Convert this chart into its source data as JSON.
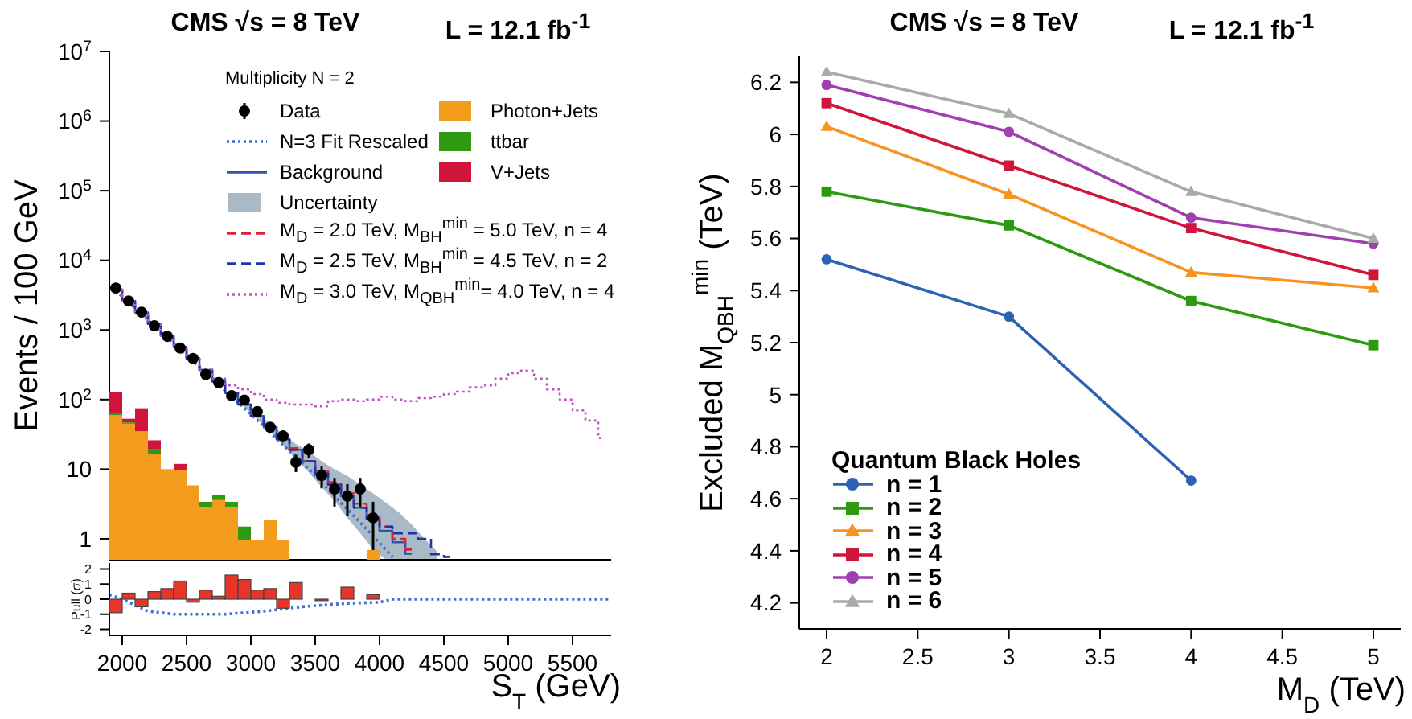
{
  "chart_data": [
    {
      "type": "bar",
      "title": "CMS √s = 8 TeV",
      "subtitle": "L = 12.1 fb$^{-1}$",
      "ylabel": "Events / 100 GeV",
      "legend_title": "Multiplicity N = 2",
      "legend": "top right",
      "log": "y",
      "stacked": true,
      "tick_labels": "y",
      "x": [
        1950,
        2050,
        2150,
        2250,
        2350,
        2450,
        2550,
        2650,
        2750,
        2850,
        2950,
        3050,
        3150,
        3250,
        3350,
        3450,
        3550,
        3650,
        3750,
        3850,
        3950
      ],
      "xlim": [
        1900,
        5800
      ],
      "xticks": [
        2000,
        2500,
        3000,
        3500,
        4000,
        4500,
        5000,
        5500
      ],
      "ylim": [
        0.5,
        10000000
      ],
      "yticks": [
        1,
        10,
        {
          "value": 100,
          "label": "10$^{2}$"
        },
        {
          "value": 1000,
          "label": "10$^{3}$"
        },
        {
          "value": 10000,
          "label": "10$^{4}$"
        },
        {
          "value": 100000,
          "label": "10$^{5}$"
        },
        {
          "value": 1000000,
          "label": "10$^{6}$"
        },
        {
          "value": 10000000,
          "label": "10$^{7}$"
        }
      ],
      "series": [
        {
          "name": "Data",
          "type": "scatter",
          "marker": "circle",
          "color": "#000000",
          "values": [
            4000,
            2600,
            1800,
            1150,
            810,
            550,
            390,
            230,
            175,
            114,
            98,
            67,
            40,
            30,
            12.6,
            19,
            8.1,
            5.2,
            4.1,
            5.2,
            2.0
          ],
          "errors": [
            null,
            null,
            null,
            null,
            null,
            null,
            null,
            null,
            null,
            null,
            null,
            null,
            null,
            null,
            3.5,
            4.4,
            2.8,
            2.3,
            2.0,
            2.3,
            1.4
          ]
        },
        {
          "name": "N=3 Fit Rescaled",
          "type": "line",
          "line_style": "dotted",
          "color": "#3b6fd6",
          "x": [
            1950,
            2450,
            2950,
            3450,
            3950,
            4100
          ],
          "values": [
            3700,
            520,
            75,
            10,
            1.1,
            0.55
          ]
        },
        {
          "name": "Background",
          "type": "step",
          "color": "#2a55b0",
          "x": [
            1950,
            2050,
            2150,
            2250,
            2350,
            2450,
            2550,
            2650,
            2750,
            2850,
            2950,
            3050,
            3150,
            3250,
            3350,
            3450,
            3550,
            3650,
            3750,
            3850,
            3950,
            4050,
            4150,
            4250
          ],
          "values": [
            3800,
            2600,
            1780,
            1220,
            830,
            570,
            390,
            266,
            182,
            124,
            85,
            58,
            40,
            27,
            19,
            13,
            8.7,
            6.0,
            4.1,
            2.8,
            1.9,
            1.3,
            0.89,
            0.61
          ]
        },
        {
          "name": "Uncertainty",
          "type": "line",
          "color": "#a9bac6",
          "x": [
            2950,
            3050,
            3150,
            3250,
            3350,
            3450,
            3550,
            3650,
            3750,
            3850,
            3950,
            4050,
            4150,
            4250,
            4350,
            4450
          ],
          "values": [
            null,
            null,
            null,
            null,
            null,
            null,
            null,
            null,
            null,
            null,
            null,
            null,
            null,
            null,
            null,
            null
          ],
          "lower": [
            78,
            52,
            35,
            22,
            14,
            9,
            5.5,
            3.5,
            2,
            1.2,
            0.7,
            0.5,
            0.5,
            0.5,
            0.5,
            0.5
          ],
          "upper": [
            92,
            64,
            45,
            32,
            23,
            18,
            13,
            10,
            8,
            6,
            4.5,
            3.3,
            2.4,
            1.6,
            1.0,
            0.65
          ]
        },
        {
          "name": "Photon+Jets",
          "type": "bar",
          "color": "#f39c1e",
          "values": [
            60,
            45,
            35,
            16.5,
            10,
            9.7,
            5.85,
            2.8,
            3.6,
            2.8,
            0.95,
            0.95,
            1.84,
            0.95,
            null,
            null,
            null,
            null,
            null,
            null,
            0.69
          ]
        },
        {
          "name": "ttbar",
          "type": "bar",
          "color": "#2e9a12",
          "values": [
            4,
            2,
            null,
            3.1,
            null,
            null,
            null,
            0.6,
            0.7,
            0.6,
            0.55,
            null,
            null,
            null,
            null,
            null,
            null,
            null,
            null,
            null,
            null
          ]
        },
        {
          "name": "V+Jets",
          "type": "bar",
          "color": "#d0143c",
          "values": [
            64,
            6,
            40,
            6.4,
            null,
            2.2,
            null,
            null,
            null,
            null,
            null,
            null,
            null,
            null,
            null,
            null,
            null,
            null,
            null,
            null,
            null
          ]
        },
        {
          "name": "M$_{D}$ = 2.0 TeV, M$_{BH}$$^{min}$ = 5.0 TeV, n = 4",
          "type": "step",
          "line_style": "dashed",
          "color": "#e0203a",
          "x": [
            3250,
            3350,
            3450,
            3550,
            3650,
            3750,
            3850,
            3950,
            4050,
            4150,
            4250
          ],
          "values": [
            27,
            20,
            13,
            9.5,
            6.5,
            4.5,
            3.2,
            2.2,
            1.5,
            1.0,
            0.7
          ]
        },
        {
          "name": "M$_{D}$ = 2.5 TeV, M$_{BH}$$^{min}$ = 4.5 TeV, n = 2",
          "type": "step",
          "line_style": "dashed",
          "color": "#2433a8",
          "x": [
            1950,
            2050,
            2150,
            2250,
            2350,
            2450,
            2550,
            2650,
            2750,
            2850,
            2950,
            3050,
            3150,
            3250,
            3350,
            3450,
            3550,
            3650,
            3750,
            3850,
            3950,
            4050,
            4150,
            4250,
            4350,
            4450,
            4550
          ],
          "values": [
            3800,
            2600,
            1780,
            1220,
            830,
            570,
            390,
            266,
            182,
            124,
            85,
            58,
            40,
            27,
            19,
            13,
            8.7,
            6.0,
            4.1,
            2.8,
            1.9,
            1.5,
            1.2,
            1.2,
            1.0,
            0.6,
            0.55
          ]
        },
        {
          "name": "M$_{D}$ = 3.0 TeV, M$_{QBH}$$^{min}$= 4.0 TeV, n = 4",
          "type": "step",
          "line_style": "dotted",
          "color": "#c050c8",
          "x": [
            1950,
            2050,
            2150,
            2250,
            2350,
            2450,
            2550,
            2650,
            2750,
            2850,
            2950,
            3050,
            3150,
            3250,
            3350,
            3450,
            3550,
            3650,
            3750,
            3850,
            3950,
            4050,
            4150,
            4250,
            4350,
            4450,
            4550,
            4650,
            4750,
            4850,
            4950,
            5050,
            5150,
            5250,
            5350,
            5450,
            5550,
            5650,
            5750
          ],
          "values": [
            3800,
            2600,
            1780,
            1220,
            830,
            570,
            390,
            270,
            200,
            160,
            140,
            120,
            100,
            90,
            85,
            85,
            80,
            95,
            100,
            95,
            100,
            110,
            100,
            95,
            105,
            110,
            120,
            130,
            150,
            160,
            200,
            240,
            260,
            200,
            140,
            100,
            70,
            50,
            28
          ]
        }
      ]
    },
    {
      "type": "bar",
      "ylabel": "Pull (σ)",
      "xlabel": "S$_{T}$ (GeV)",
      "x": [
        1950,
        2050,
        2150,
        2250,
        2350,
        2450,
        2550,
        2650,
        2750,
        2850,
        2950,
        3050,
        3150,
        3250,
        3350,
        3450,
        3550,
        3650,
        3750,
        3850,
        3950
      ],
      "xlim": [
        1900,
        5800
      ],
      "xticks": [
        2000,
        2500,
        3000,
        3500,
        4000,
        4500,
        5000,
        5500
      ],
      "ylim": [
        -2.4,
        2.4
      ],
      "yticks": [
        -2,
        -1,
        0,
        1,
        2
      ],
      "series": [
        {
          "color": "#e8352a",
          "values": [
            -0.9,
            0.4,
            -0.5,
            0.5,
            0.7,
            1.2,
            -0.2,
            0.6,
            0.2,
            1.6,
            1.3,
            0.6,
            0.7,
            -0.6,
            1.1,
            0,
            -0.1,
            0,
            0.8,
            0,
            0.3
          ]
        },
        {
          "type": "line",
          "line_style": "dotted",
          "color": "#3b6fd6",
          "x": [
            1900,
            2000,
            2200,
            2400,
            2800,
            3100,
            3400,
            3700,
            4000,
            4100,
            5800
          ],
          "values": [
            0.3,
            0,
            -0.8,
            -1.0,
            -1.0,
            -0.8,
            -0.5,
            -0.3,
            -0.2,
            0,
            0
          ]
        }
      ]
    },
    {
      "type": "line",
      "title": "CMS √s = 8 TeV",
      "subtitle": "L = 12.1 fb$^{-1}$",
      "xlabel": "M$_{D}$ (TeV)",
      "ylabel": "Excluded M$_{QBH}$$^{min}$ (TeV)",
      "legend_title": "Quantum Black Holes",
      "legend": "bottom left",
      "x": [
        2,
        3,
        4,
        5
      ],
      "xlim": [
        1.85,
        5.15
      ],
      "xticks": [
        2,
        2.5,
        3,
        3.5,
        4,
        4.5,
        5
      ],
      "ylim": [
        4.1,
        6.3
      ],
      "yticks": [
        4.2,
        4.4,
        4.6,
        4.8,
        5,
        5.2,
        5.4,
        5.6,
        5.8,
        6,
        6.2
      ],
      "series": [
        {
          "name": "n = 1",
          "marker": "circle",
          "color": "#2c62b3",
          "values": [
            5.52,
            5.3,
            4.67,
            null
          ]
        },
        {
          "name": "n = 2",
          "marker": "square",
          "color": "#2e9a12",
          "values": [
            5.78,
            5.65,
            5.36,
            5.19
          ]
        },
        {
          "name": "n = 3",
          "marker": "triangle",
          "color": "#f7931e",
          "values": [
            6.03,
            5.77,
            5.47,
            5.41
          ]
        },
        {
          "name": "n = 4",
          "marker": "square",
          "color": "#d0143c",
          "values": [
            6.12,
            5.88,
            5.64,
            5.46
          ]
        },
        {
          "name": "n = 5",
          "marker": "circle",
          "color": "#a03fb0",
          "values": [
            6.19,
            6.01,
            5.68,
            5.58
          ]
        },
        {
          "name": "n = 6",
          "marker": "triangle",
          "color": "#aaaaaa",
          "values": [
            6.24,
            6.08,
            5.78,
            5.6
          ]
        }
      ]
    }
  ]
}
